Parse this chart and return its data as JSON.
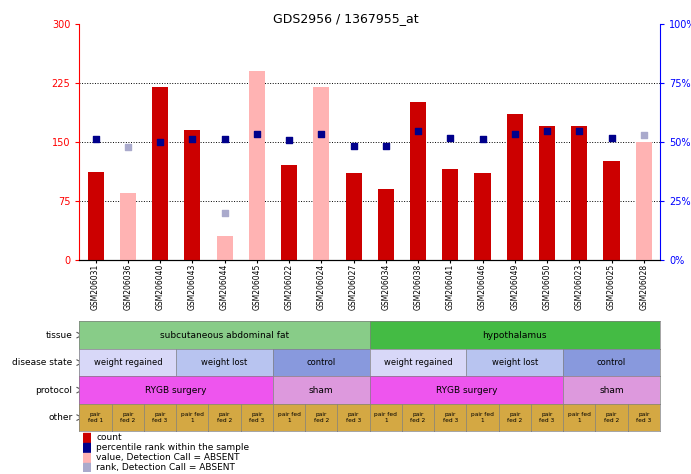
{
  "title": "GDS2956 / 1367955_at",
  "samples": [
    "GSM206031",
    "GSM206036",
    "GSM206040",
    "GSM206043",
    "GSM206044",
    "GSM206045",
    "GSM206022",
    "GSM206024",
    "GSM206027",
    "GSM206034",
    "GSM206038",
    "GSM206041",
    "GSM206046",
    "GSM206049",
    "GSM206050",
    "GSM206023",
    "GSM206025",
    "GSM206028"
  ],
  "count_values": [
    112,
    null,
    220,
    165,
    null,
    null,
    120,
    null,
    110,
    90,
    200,
    115,
    110,
    185,
    170,
    170,
    125,
    null
  ],
  "count_absent": [
    null,
    85,
    null,
    null,
    30,
    240,
    null,
    220,
    null,
    null,
    null,
    null,
    null,
    null,
    null,
    null,
    null,
    150
  ],
  "percentile_values": [
    153,
    null,
    150,
    153,
    153,
    160,
    152,
    160,
    145,
    145,
    163,
    155,
    153,
    160,
    163,
    163,
    155,
    null
  ],
  "percentile_absent": [
    null,
    143,
    null,
    null,
    60,
    null,
    null,
    null,
    null,
    null,
    null,
    null,
    null,
    null,
    null,
    null,
    null,
    158
  ],
  "ylim_left": [
    0,
    300
  ],
  "ylim_right": [
    0,
    100
  ],
  "yticks_left": [
    0,
    75,
    150,
    225,
    300
  ],
  "yticks_right": [
    0,
    25,
    50,
    75,
    100
  ],
  "ytick_labels_left": [
    "0",
    "75",
    "150",
    "225",
    "300"
  ],
  "ytick_labels_right": [
    "0%",
    "25%",
    "50%",
    "75%",
    "100%"
  ],
  "hlines": [
    75,
    150,
    225
  ],
  "bar_color_present": "#cc0000",
  "bar_color_absent": "#ffb3b3",
  "dot_color_present": "#00008b",
  "dot_color_absent": "#aaaacc",
  "tissue_segments": [
    {
      "text": "subcutaneous abdominal fat",
      "span": [
        0,
        9
      ],
      "color": "#88cc88"
    },
    {
      "text": "hypothalamus",
      "span": [
        9,
        18
      ],
      "color": "#44bb44"
    }
  ],
  "disease_segments": [
    {
      "text": "weight regained",
      "span": [
        0,
        3
      ],
      "color": "#d8d8f8"
    },
    {
      "text": "weight lost",
      "span": [
        3,
        6
      ],
      "color": "#b8c4f0"
    },
    {
      "text": "control",
      "span": [
        6,
        9
      ],
      "color": "#8899dd"
    },
    {
      "text": "weight regained",
      "span": [
        9,
        12
      ],
      "color": "#d8d8f8"
    },
    {
      "text": "weight lost",
      "span": [
        12,
        15
      ],
      "color": "#b8c4f0"
    },
    {
      "text": "control",
      "span": [
        15,
        18
      ],
      "color": "#8899dd"
    }
  ],
  "protocol_segments": [
    {
      "text": "RYGB surgery",
      "span": [
        0,
        6
      ],
      "color": "#ee55ee"
    },
    {
      "text": "sham",
      "span": [
        6,
        9
      ],
      "color": "#dd99dd"
    },
    {
      "text": "RYGB surgery",
      "span": [
        9,
        15
      ],
      "color": "#ee55ee"
    },
    {
      "text": "sham",
      "span": [
        15,
        18
      ],
      "color": "#dd99dd"
    }
  ],
  "other_labels": [
    "pair\nfed 1",
    "pair\nfed 2",
    "pair\nfed 3",
    "pair fed\n1",
    "pair\nfed 2",
    "pair\nfed 3",
    "pair fed\n1",
    "pair\nfed 2",
    "pair\nfed 3",
    "pair fed\n1",
    "pair\nfed 2",
    "pair\nfed 3",
    "pair fed\n1",
    "pair\nfed 2",
    "pair\nfed 3",
    "pair fed\n1",
    "pair\nfed 2",
    "pair\nfed 3"
  ],
  "other_color": "#d4a843",
  "row_labels": [
    "tissue",
    "disease state",
    "protocol",
    "other"
  ],
  "legend_items": [
    {
      "color": "#cc0000",
      "label": "count"
    },
    {
      "color": "#00008b",
      "label": "percentile rank within the sample"
    },
    {
      "color": "#ffb3b3",
      "label": "value, Detection Call = ABSENT"
    },
    {
      "color": "#aaaacc",
      "label": "rank, Detection Call = ABSENT"
    }
  ]
}
